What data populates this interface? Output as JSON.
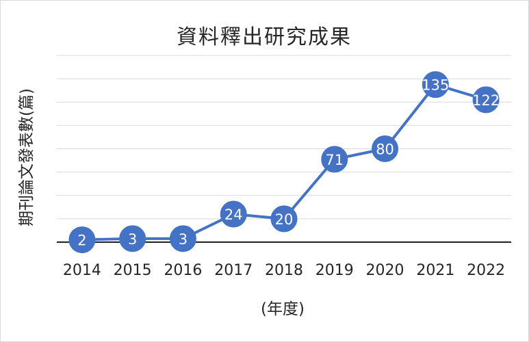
{
  "chart_data": {
    "type": "line",
    "title": "資料釋出研究成果",
    "xlabel": "(年度)",
    "ylabel": "期刊論文發表數(篇)",
    "categories": [
      "2014",
      "2015",
      "2016",
      "2017",
      "2018",
      "2019",
      "2020",
      "2021",
      "2022"
    ],
    "series": [
      {
        "values": [
          2,
          3,
          3,
          24,
          20,
          71,
          80,
          135,
          122
        ],
        "color": "#4472c4"
      }
    ],
    "ylim": [
      0,
      160
    ],
    "grid": true,
    "legend": "none",
    "data_labels": true,
    "marker": "circle"
  },
  "colors": {
    "series": "#4472c4",
    "grid": "#d9d9d9",
    "text": "#262626",
    "data_label": "#ffffff"
  }
}
